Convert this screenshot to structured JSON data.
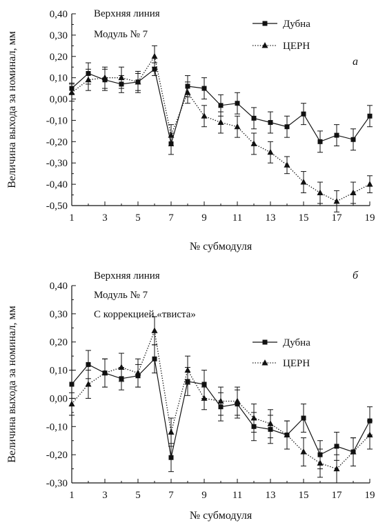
{
  "chart_data": [
    {
      "type": "line",
      "panel_letter": "а",
      "annotations": [
        "Верхняя линия",
        "Модуль № 7"
      ],
      "xlabel": "№ субмодуля",
      "ylabel": "Величина выхода за номинал, мм",
      "xlim": [
        1,
        19
      ],
      "ylim": [
        -0.5,
        0.4
      ],
      "x_ticks": [
        "1",
        "3",
        "5",
        "7",
        "9",
        "11",
        "13",
        "15",
        "17",
        "19"
      ],
      "y_ticks": [
        "0,40",
        "0,30",
        "0,20",
        "0,10",
        "0,00",
        "-0,10",
        "-0,20",
        "-0,30",
        "-0,40",
        "-0,50"
      ],
      "y_tick_values": [
        0.4,
        0.3,
        0.2,
        0.1,
        0.0,
        -0.1,
        -0.2,
        -0.3,
        -0.4,
        -0.5
      ],
      "legend_position": "top-right",
      "grid": false,
      "x": [
        1,
        2,
        3,
        4,
        5,
        6,
        7,
        8,
        9,
        10,
        11,
        12,
        13,
        14,
        15,
        16,
        17,
        18,
        19
      ],
      "series": [
        {
          "name": "Дубна",
          "marker": "square",
          "line": "solid",
          "values": [
            0.05,
            0.12,
            0.09,
            0.07,
            0.08,
            0.14,
            -0.21,
            0.06,
            0.05,
            -0.03,
            -0.02,
            -0.09,
            -0.11,
            -0.13,
            -0.07,
            -0.2,
            -0.17,
            -0.19,
            -0.08
          ],
          "errors": [
            0.025,
            0.05,
            0.05,
            0.04,
            0.04,
            0.03,
            0.05,
            0.05,
            0.05,
            0.05,
            0.05,
            0.05,
            0.05,
            0.05,
            0.05,
            0.05,
            0.05,
            0.05,
            0.05
          ]
        },
        {
          "name": "ЦЕРН",
          "marker": "triangle",
          "line": "dotted",
          "values": [
            0.03,
            0.09,
            0.1,
            0.1,
            0.08,
            0.2,
            -0.17,
            0.03,
            -0.08,
            -0.11,
            -0.13,
            -0.21,
            -0.25,
            -0.31,
            -0.39,
            -0.44,
            -0.48,
            -0.44,
            -0.4
          ],
          "errors": [
            0.04,
            0.05,
            0.05,
            0.05,
            0.05,
            0.05,
            0.05,
            0.05,
            0.05,
            0.05,
            0.05,
            0.05,
            0.05,
            0.04,
            0.05,
            0.05,
            0.05,
            0.05,
            0.04
          ]
        }
      ]
    },
    {
      "type": "line",
      "panel_letter": "б",
      "annotations": [
        "Верхняя линия",
        "Модуль № 7",
        "С коррекцией «твиста»"
      ],
      "xlabel": "№ субмодуля",
      "ylabel": "Величина выхода за номинал, мм",
      "xlim": [
        1,
        19
      ],
      "ylim": [
        -0.3,
        0.4
      ],
      "x_ticks": [
        "1",
        "3",
        "5",
        "7",
        "9",
        "11",
        "13",
        "15",
        "17",
        "19"
      ],
      "y_ticks": [
        "0,40",
        "0,30",
        "0,20",
        "0,10",
        "0,00",
        "-0,10",
        "-0,20",
        "-0,30"
      ],
      "y_tick_values": [
        0.4,
        0.3,
        0.2,
        0.1,
        0.0,
        -0.1,
        -0.2,
        -0.3
      ],
      "legend_position": "center-right",
      "grid": false,
      "x": [
        1,
        2,
        3,
        4,
        5,
        6,
        7,
        8,
        9,
        10,
        11,
        12,
        13,
        14,
        15,
        16,
        17,
        18,
        19
      ],
      "series": [
        {
          "name": "Дубна",
          "marker": "square",
          "line": "solid",
          "values": [
            0.05,
            0.12,
            0.09,
            0.07,
            0.08,
            0.14,
            -0.21,
            0.06,
            0.05,
            -0.03,
            -0.02,
            -0.1,
            -0.11,
            -0.13,
            -0.07,
            -0.2,
            -0.17,
            -0.19,
            -0.08
          ],
          "errors": [
            0.05,
            0.05,
            0.05,
            0.04,
            0.04,
            0.05,
            0.05,
            0.05,
            0.05,
            0.05,
            0.05,
            0.05,
            0.05,
            0.05,
            0.05,
            0.05,
            0.05,
            0.05,
            0.05
          ]
        },
        {
          "name": "ЦЕРН",
          "marker": "triangle",
          "line": "dotted",
          "values": [
            -0.02,
            0.05,
            0.09,
            0.11,
            0.09,
            0.24,
            -0.12,
            0.1,
            0.0,
            -0.01,
            -0.01,
            -0.07,
            -0.09,
            -0.13,
            -0.19,
            -0.23,
            -0.25,
            -0.19,
            -0.13
          ],
          "errors": [
            0.04,
            0.05,
            0.05,
            0.05,
            0.05,
            0.05,
            0.05,
            0.05,
            0.04,
            0.05,
            0.05,
            0.05,
            0.05,
            0.05,
            0.05,
            0.05,
            0.05,
            0.05,
            0.05
          ]
        }
      ]
    }
  ]
}
